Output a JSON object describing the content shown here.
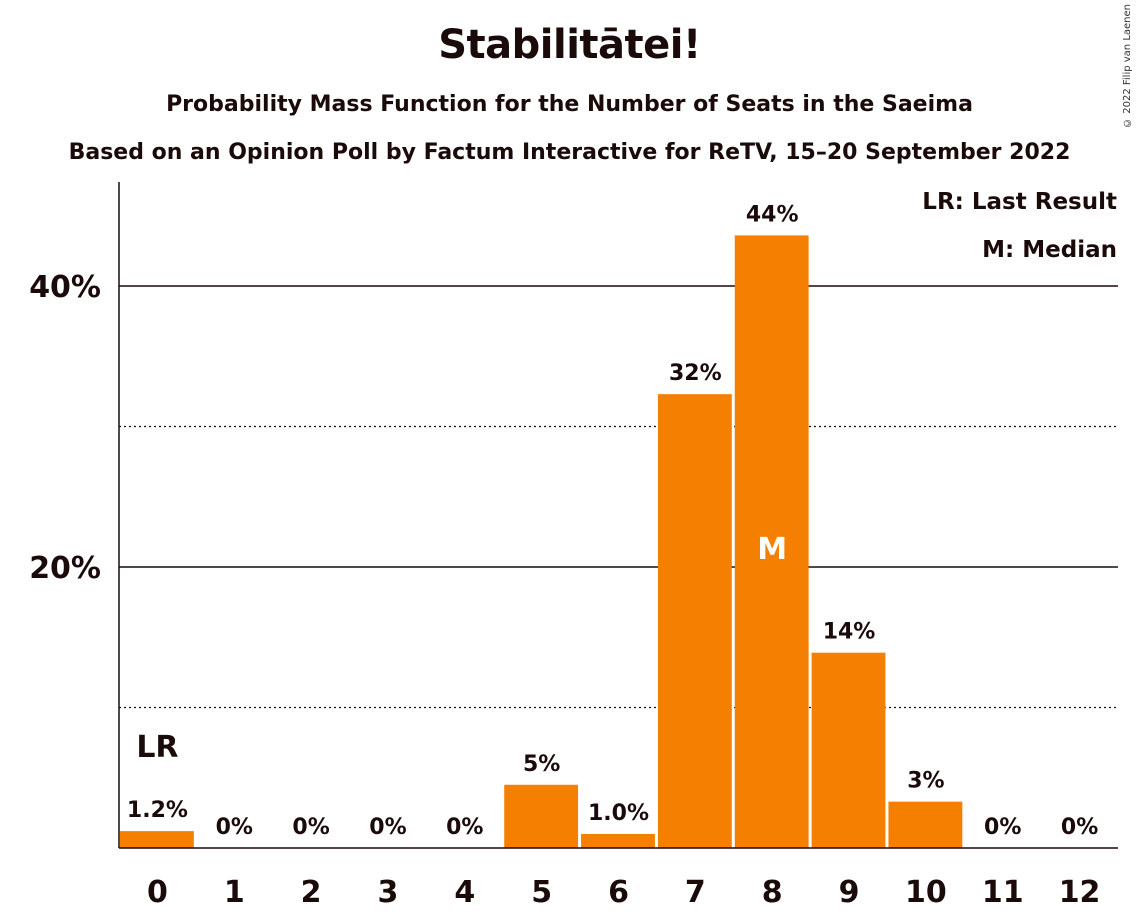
{
  "chart_data": {
    "type": "bar",
    "title": "Stabilitātei!",
    "subtitle": "Probability Mass Function for the Number of Seats in the Saeima",
    "subtitle2": "Based on an Opinion Poll by Factum Interactive for ReTV, 15–20 September 2022",
    "copyright": "© 2022 Filip van Laenen",
    "categories": [
      "0",
      "1",
      "2",
      "3",
      "4",
      "5",
      "6",
      "7",
      "8",
      "9",
      "10",
      "11",
      "12"
    ],
    "values": [
      1.2,
      0,
      0,
      0,
      0,
      4.5,
      1.0,
      32.3,
      43.6,
      13.9,
      3.3,
      0,
      0
    ],
    "value_labels": [
      "1.2%",
      "0%",
      "0%",
      "0%",
      "0%",
      "5%",
      "1.0%",
      "32%",
      "44%",
      "14%",
      "3%",
      "0%",
      "0%"
    ],
    "ylim": [
      0,
      47.4
    ],
    "y_ticks": [
      {
        "value": 20,
        "label": "20%"
      },
      {
        "value": 40,
        "label": "40%"
      }
    ],
    "dotted_gridlines": [
      10,
      30
    ],
    "bar_color": "#f57f00",
    "last_result": {
      "index": 0,
      "marker": "LR"
    },
    "median": {
      "index": 8,
      "marker": "M"
    },
    "legend": [
      "LR: Last Result",
      "M: Median"
    ],
    "legend_position": "top-right"
  }
}
